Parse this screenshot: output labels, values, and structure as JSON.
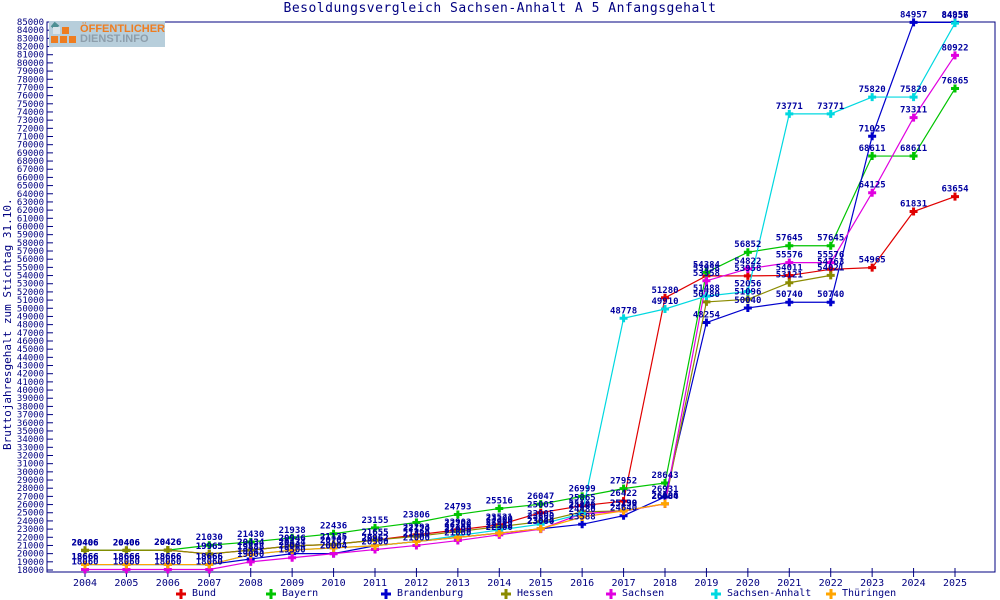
{
  "logo": {
    "line1": "ÖFFENTLICHER",
    "line2": "DIENST.INFO"
  },
  "colors": {
    "text_navy": "#000080",
    "point_label_blue": "#0000a0",
    "frame": "#000080",
    "background": "#ffffff"
  },
  "chart_data": {
    "type": "line",
    "title": "Besoldungsvergleich Sachsen-Anhalt A 5 Anfangsgehalt",
    "xlabel": "",
    "ylabel": "Bruttojahresgehalt zum Stichtag 31.10.",
    "ylim": [
      18000,
      85000
    ],
    "ytick_step": 1000,
    "grid": false,
    "legend_position": "bottom",
    "point_labels": "every point, value printed above marker",
    "x": [
      2004,
      2005,
      2006,
      2007,
      2008,
      2009,
      2010,
      2011,
      2012,
      2013,
      2014,
      2015,
      2016,
      2017,
      2018,
      2019,
      2020,
      2021,
      2022,
      2023,
      2024,
      2025
    ],
    "series": [
      {
        "name": "Bund",
        "color": "#e00000",
        "values": [
          20406,
          20406,
          20426,
          19965,
          20434,
          20946,
          21135,
          21655,
          22293,
          22902,
          23521,
          25005,
          25865,
          26422,
          51280,
          53958,
          53958,
          54011,
          54763,
          54965,
          61831,
          63654
        ]
      },
      {
        "name": "Bayern",
        "color": "#00c400",
        "values": [
          20406,
          20406,
          20426,
          21030,
          21430,
          21938,
          22436,
          23155,
          23806,
          24793,
          25516,
          26047,
          26999,
          27952,
          28643,
          54384,
          56852,
          57645,
          57645,
          68611,
          68611,
          76865
        ]
      },
      {
        "name": "Brandenburg",
        "color": "#0000cc",
        "values": [
          18666,
          18666,
          18666,
          18666,
          19345,
          20004,
          20004,
          20962,
          21480,
          21990,
          22512,
          23044,
          23588,
          24640,
          26931,
          48254,
          50040,
          50740,
          50740,
          71025,
          84957,
          84957
        ]
      },
      {
        "name": "Hessen",
        "color": "#8b8b00",
        "values": [
          20406,
          20406,
          20426,
          19965,
          20434,
          20946,
          21135,
          21655,
          22120,
          22700,
          23300,
          23905,
          25106,
          25230,
          26084,
          50780,
          51096,
          53121,
          54021,
          null,
          null,
          null
        ]
      },
      {
        "name": "Sachsen",
        "color": "#e000e0",
        "values": [
          18060,
          18060,
          18060,
          18060,
          19000,
          19500,
          20004,
          20500,
          21000,
          21600,
          22300,
          23000,
          24880,
          25199,
          26084,
          53358,
          54822,
          55576,
          55576,
          64125,
          73311,
          80922
        ]
      },
      {
        "name": "Sachsen-Anhalt",
        "color": "#00d8e0",
        "values": [
          18666,
          18666,
          18666,
          18666,
          19888,
          20434,
          20707,
          20962,
          21480,
          22200,
          22900,
          23600,
          24880,
          48778,
          49910,
          51488,
          52056,
          73771,
          73771,
          75820,
          75820,
          84856
        ]
      },
      {
        "name": "Thüringen",
        "color": "#ffa500",
        "values": [
          18666,
          18666,
          18666,
          18666,
          19888,
          20434,
          20707,
          20962,
          21480,
          21990,
          22512,
          23044,
          24480,
          25230,
          26100,
          null,
          null,
          null,
          null,
          null,
          null,
          null
        ]
      }
    ]
  }
}
